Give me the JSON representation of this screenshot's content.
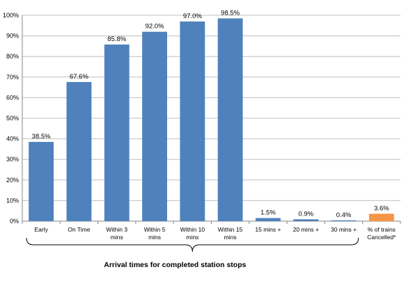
{
  "chart_data": {
    "type": "bar",
    "title": "",
    "xlabel": "",
    "ylabel": "",
    "ylim": [
      0,
      100
    ],
    "yticks": [
      "0%",
      "10%",
      "20%",
      "30%",
      "40%",
      "50%",
      "60%",
      "70%",
      "80%",
      "90%",
      "100%"
    ],
    "grid": true,
    "legend": "none",
    "categories": [
      [
        "Early"
      ],
      [
        "On Time"
      ],
      [
        "Within 3",
        "mins"
      ],
      [
        "Within 5",
        "mins"
      ],
      [
        "Within 10",
        "mins"
      ],
      [
        "Within 15",
        "mins"
      ],
      [
        "15 mins +"
      ],
      [
        "20 mins +"
      ],
      [
        "30 mins +"
      ],
      [
        "% of trains",
        "Cancelled*"
      ]
    ],
    "values": [
      38.5,
      67.6,
      85.8,
      92.0,
      97.0,
      98.5,
      1.5,
      0.9,
      0.4,
      3.6
    ],
    "data_labels": [
      "38.5%",
      "67.6%",
      "85.8%",
      "92.0%",
      "97.0%",
      "98.5%",
      "1.5%",
      "0.9%",
      "0.4%",
      "3.6%"
    ],
    "colors": [
      "#4F81BD",
      "#4F81BD",
      "#4F81BD",
      "#4F81BD",
      "#4F81BD",
      "#4F81BD",
      "#4F81BD",
      "#4F81BD",
      "#4F81BD",
      "#F79646"
    ],
    "gridline_color": "#bfbfbf",
    "axis_color": "#868686",
    "brace": {
      "spans_categories": [
        0,
        8
      ],
      "caption": "Arrival times for completed station stops"
    }
  }
}
